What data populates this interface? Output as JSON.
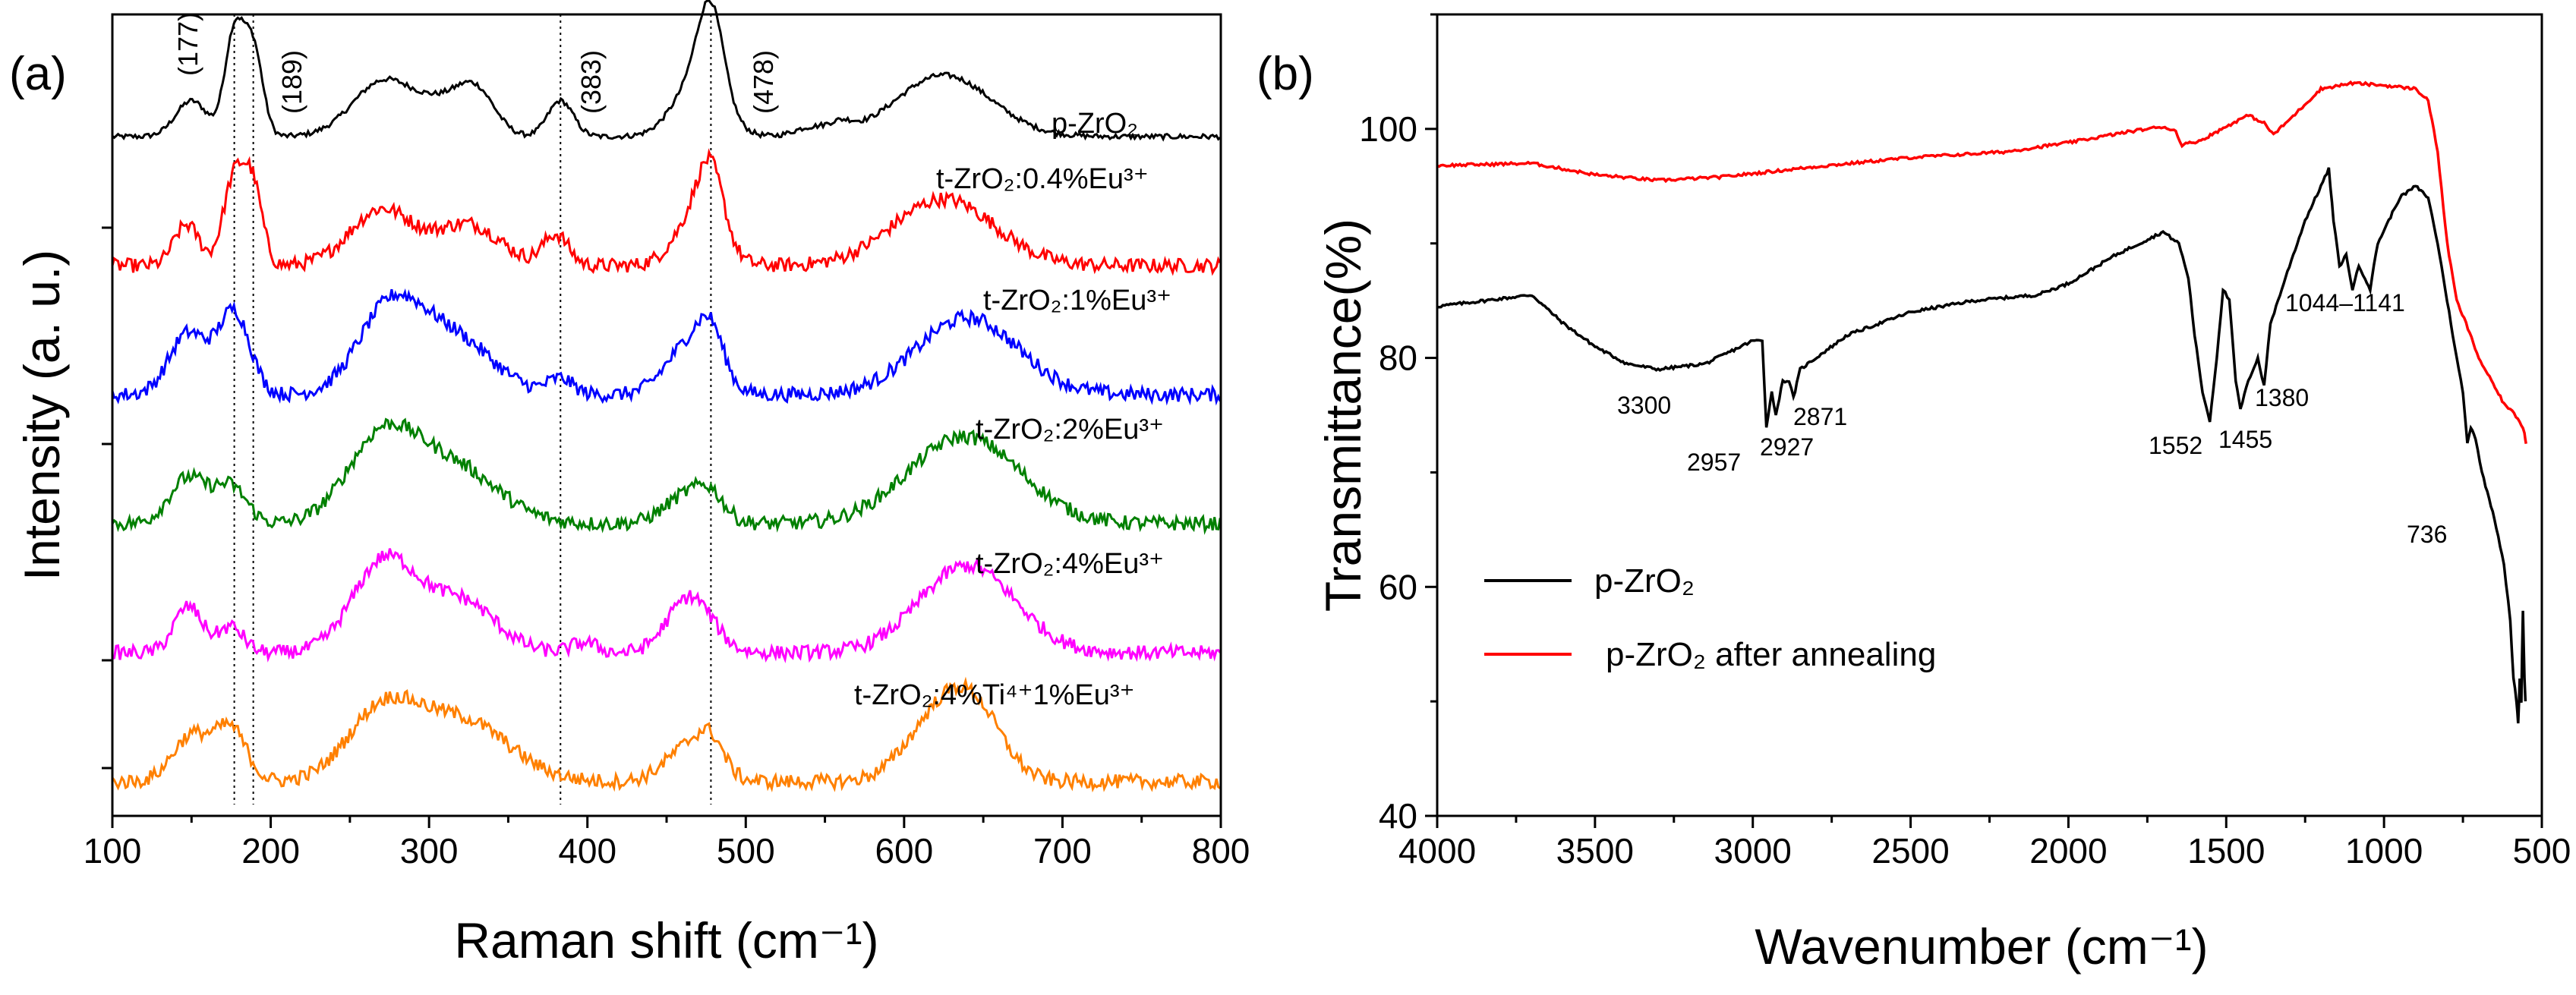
{
  "chart_data": [
    {
      "panel": "(a)",
      "type": "line",
      "title": "",
      "xlabel": "Raman shift (cm⁻¹)",
      "ylabel": "Intensity (a. u.)",
      "xlim": [
        100,
        800
      ],
      "xticks": [
        100,
        200,
        300,
        400,
        500,
        600,
        700,
        800
      ],
      "yticks_labeled": false,
      "reference_lines": [
        177,
        189,
        383,
        478
      ],
      "peak_labels": [
        "(177)",
        "(189)",
        "(383)",
        "(478)"
      ],
      "series": [
        {
          "name": "p-ZrO2",
          "label": "p-ZrO₂",
          "color": "#000000",
          "offset": 5,
          "peaks": [
            [
              150,
              0.35,
              10
            ],
            [
              177,
              1.0,
              6
            ],
            [
              189,
              0.85,
              6
            ],
            [
              272,
              0.55,
              20
            ],
            [
              330,
              0.4,
              12
            ],
            [
              310,
              0.25,
              15
            ],
            [
              383,
              0.35,
              8
            ],
            [
              470,
              0.55,
              15
            ],
            [
              478,
              0.85,
              8
            ],
            [
              540,
              0.08,
              10
            ],
            [
              625,
              0.6,
              30
            ],
            [
              560,
              0.1,
              8
            ]
          ]
        },
        {
          "name": "t-ZrO2:0.4%Eu3+",
          "label": "t-ZrO₂:0.4%Eu³⁺",
          "color": "#ff0000",
          "offset": 4,
          "peaks": [
            [
              147,
              0.4,
              8
            ],
            [
              177,
              0.85,
              7
            ],
            [
              189,
              0.7,
              6
            ],
            [
              270,
              0.55,
              20
            ],
            [
              325,
              0.4,
              20
            ],
            [
              380,
              0.3,
              8
            ],
            [
              470,
              0.5,
              14
            ],
            [
              478,
              0.6,
              8
            ],
            [
              625,
              0.65,
              32
            ]
          ]
        },
        {
          "name": "t-ZrO2:1%Eu3+",
          "label": "t-ZrO₂:1%Eu³⁺",
          "color": "#0000ff",
          "offset": 3,
          "peaks": [
            [
              148,
              0.6,
              12
            ],
            [
              177,
              0.8,
              10
            ],
            [
              275,
              0.8,
              20
            ],
            [
              315,
              0.55,
              25
            ],
            [
              383,
              0.15,
              8
            ],
            [
              465,
              0.5,
              15
            ],
            [
              478,
              0.4,
              8
            ],
            [
              640,
              0.75,
              32
            ]
          ]
        },
        {
          "name": "t-ZrO2:2%Eu3+",
          "label": "t-ZrO₂:2%Eu³⁺",
          "color": "#008000",
          "offset": 2,
          "peaks": [
            [
              148,
              0.45,
              12
            ],
            [
              175,
              0.35,
              10
            ],
            [
              270,
              0.8,
              22
            ],
            [
              315,
              0.55,
              28
            ],
            [
              465,
              0.3,
              15
            ],
            [
              478,
              0.15,
              8
            ],
            [
              638,
              0.85,
              35
            ]
          ]
        },
        {
          "name": "t-ZrO2:4%Eu3+",
          "label": "t-ZrO₂:4%Eu³⁺",
          "color": "#ff00ff",
          "offset": 1,
          "peaks": [
            [
              148,
              0.45,
              9
            ],
            [
              175,
              0.25,
              8
            ],
            [
              272,
              0.9,
              20
            ],
            [
              320,
              0.5,
              22
            ],
            [
              398,
              0.1,
              8
            ],
            [
              465,
              0.55,
              14
            ],
            [
              640,
              0.85,
              30
            ]
          ]
        },
        {
          "name": "t-ZrO2:4%Ti4+1%Eu3+",
          "label": "t-ZrO₂:4%Ti⁴⁺1%Eu³⁺",
          "color": "#ff8000",
          "offset": 0,
          "peaks": [
            [
              150,
              0.45,
              12
            ],
            [
              175,
              0.5,
              10
            ],
            [
              270,
              0.65,
              22
            ],
            [
              320,
              0.6,
              30
            ],
            [
              465,
              0.35,
              15
            ],
            [
              478,
              0.25,
              8
            ],
            [
              620,
              0.55,
              20
            ],
            [
              645,
              0.6,
              18
            ]
          ]
        }
      ]
    },
    {
      "panel": "(b)",
      "type": "line",
      "title": "",
      "xlabel": "Wavenumber (cm⁻¹)",
      "ylabel": "Transmittance(%)",
      "xlim": [
        4000,
        500
      ],
      "ylim": [
        40,
        110
      ],
      "xticks": [
        4000,
        3500,
        3000,
        2500,
        2000,
        1500,
        1000,
        500
      ],
      "yticks": [
        40,
        60,
        80,
        100
      ],
      "legend_position": "bottom-left",
      "series": [
        {
          "name": "p-ZrO2",
          "label": "p-ZrO₂",
          "color": "#000000",
          "points": [
            [
              4000,
              84.5
            ],
            [
              3700,
              85.5
            ],
            [
              3600,
              83
            ],
            [
              3500,
              81
            ],
            [
              3400,
              79.5
            ],
            [
              3300,
              79
            ],
            [
              3150,
              79.5
            ],
            [
              3000,
              81.5
            ],
            [
              2970,
              81.5
            ],
            [
              2957,
              74
            ],
            [
              2940,
              77
            ],
            [
              2927,
              75
            ],
            [
              2905,
              78
            ],
            [
              2885,
              78
            ],
            [
              2871,
              76.5
            ],
            [
              2850,
              79
            ],
            [
              2700,
              82
            ],
            [
              2500,
              84
            ],
            [
              2300,
              85
            ],
            [
              2100,
              85.5
            ],
            [
              2000,
              86.5
            ],
            [
              1850,
              89
            ],
            [
              1700,
              91
            ],
            [
              1650,
              90
            ],
            [
              1620,
              87
            ],
            [
              1600,
              82
            ],
            [
              1575,
              77
            ],
            [
              1552,
              74.5
            ],
            [
              1530,
              80
            ],
            [
              1510,
              86
            ],
            [
              1490,
              85
            ],
            [
              1470,
              78
            ],
            [
              1455,
              75.5
            ],
            [
              1430,
              78
            ],
            [
              1400,
              80
            ],
            [
              1380,
              77.5
            ],
            [
              1360,
              83
            ],
            [
              1300,
              88
            ],
            [
              1250,
              92
            ],
            [
              1200,
              95
            ],
            [
              1175,
              96.5
            ],
            [
              1160,
              92
            ],
            [
              1141,
              88
            ],
            [
              1120,
              89
            ],
            [
              1100,
              86
            ],
            [
              1080,
              88
            ],
            [
              1060,
              87
            ],
            [
              1044,
              86
            ],
            [
              1020,
              90
            ],
            [
              950,
              94
            ],
            [
              900,
              95
            ],
            [
              860,
              94
            ],
            [
              830,
              90
            ],
            [
              800,
              85
            ],
            [
              770,
              80
            ],
            [
              750,
              77
            ],
            [
              736,
              72.5
            ],
            [
              725,
              74
            ],
            [
              710,
              73
            ],
            [
              690,
              70
            ],
            [
              650,
              66
            ],
            [
              620,
              62
            ],
            [
              600,
              57
            ],
            [
              590,
              52
            ],
            [
              580,
              50
            ],
            [
              575,
              48
            ],
            [
              570,
              52
            ],
            [
              565,
              50
            ],
            [
              560,
              58
            ],
            [
              555,
              52
            ],
            [
              552,
              50
            ]
          ]
        },
        {
          "name": "p-ZrO2 after annealing",
          "label": "p-ZrO₂ after annealing",
          "color": "#ff0000",
          "points": [
            [
              4000,
              96.8
            ],
            [
              3700,
              97
            ],
            [
              3500,
              96
            ],
            [
              3300,
              95.5
            ],
            [
              3100,
              95.8
            ],
            [
              2800,
              96.7
            ],
            [
              2500,
              97.5
            ],
            [
              2200,
              98
            ],
            [
              2000,
              98.8
            ],
            [
              1800,
              99.8
            ],
            [
              1700,
              100.2
            ],
            [
              1660,
              99.8
            ],
            [
              1640,
              98.6
            ],
            [
              1580,
              99
            ],
            [
              1480,
              100.5
            ],
            [
              1430,
              101.2
            ],
            [
              1380,
              100.5
            ],
            [
              1350,
              99.5
            ],
            [
              1300,
              100.8
            ],
            [
              1200,
              103.5
            ],
            [
              1100,
              104
            ],
            [
              1000,
              103.8
            ],
            [
              900,
              103.5
            ],
            [
              860,
              102.5
            ],
            [
              830,
              98
            ],
            [
              800,
              90
            ],
            [
              770,
              85
            ],
            [
              740,
              83
            ],
            [
              700,
              80
            ],
            [
              660,
              78
            ],
            [
              620,
              76
            ],
            [
              600,
              75.5
            ],
            [
              570,
              74.5
            ],
            [
              555,
              73.5
            ],
            [
              550,
              72.5
            ]
          ]
        }
      ],
      "annotations": [
        "3300",
        "2957",
        "2927",
        "2871",
        "1552",
        "1455",
        "1380",
        "1044–1141",
        "736"
      ]
    }
  ],
  "labels": {
    "panel_a": "(a)",
    "panel_b": "(b)"
  }
}
